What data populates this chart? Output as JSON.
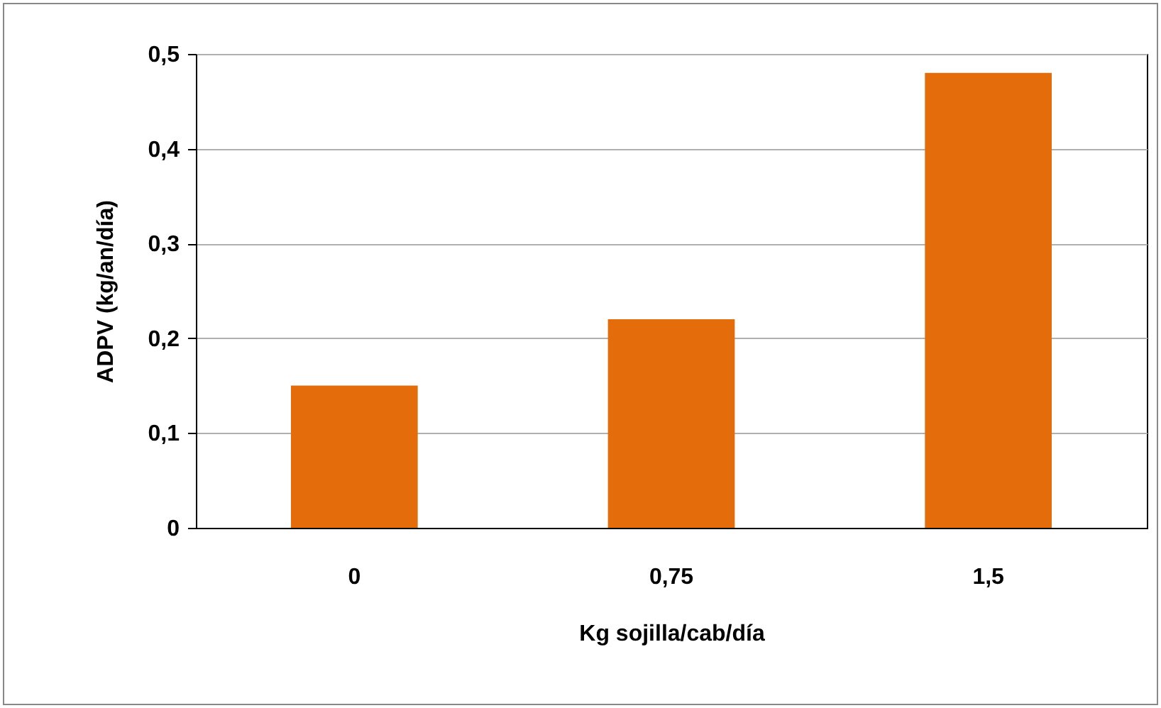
{
  "chart_data": {
    "type": "bar",
    "xlabel": "Kg sojilla/cab/día",
    "ylabel": "ADPV (kg/an/día)",
    "categories": [
      "0",
      "0,75",
      "1,5"
    ],
    "values": [
      0.15,
      0.22,
      0.48
    ],
    "color": "#e46c0a",
    "ylim": [
      0,
      0.5
    ],
    "yticks": [
      0,
      {
        "value": 0.1,
        "label": "0,1"
      },
      {
        "value": 0.2,
        "label": "0,2"
      },
      {
        "value": 0.3,
        "label": "0,3"
      },
      {
        "value": 0.4,
        "label": "0,4"
      },
      {
        "value": 0.5,
        "label": "0,5"
      }
    ],
    "grid": "y"
  }
}
